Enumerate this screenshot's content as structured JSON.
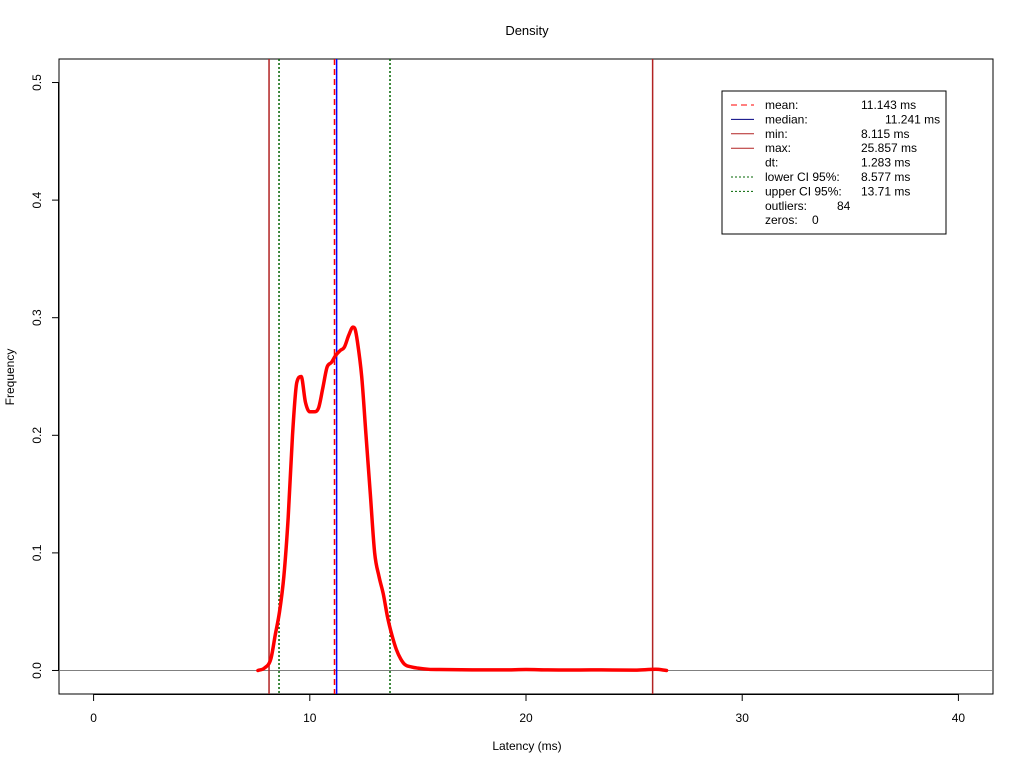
{
  "chart_data": {
    "type": "line",
    "title": "Density",
    "xlabel": "Latency (ms)",
    "ylabel": "Frequency",
    "xlim": [
      -1.6,
      41.6
    ],
    "ylim": [
      -0.02,
      0.52
    ],
    "x_ticks": [
      "0",
      "10",
      "20",
      "30",
      "40"
    ],
    "y_ticks": [
      "0.0",
      "0.1",
      "0.2",
      "0.3",
      "0.4",
      "0.5"
    ],
    "grid": false,
    "legend_position": "top-right",
    "density": {
      "color": "#ff0000",
      "x": [
        7.6,
        7.9,
        8.2,
        8.4,
        8.6,
        8.8,
        9.0,
        9.2,
        9.4,
        9.6,
        9.8,
        10.0,
        10.2,
        10.4,
        10.6,
        10.8,
        11.0,
        11.2,
        11.4,
        11.6,
        11.8,
        12.0,
        12.1,
        12.2,
        12.4,
        12.6,
        12.8,
        13.0,
        13.2,
        13.4,
        13.6,
        13.8,
        14.0,
        14.2,
        14.4,
        14.7,
        15.0,
        15.5,
        16.0,
        17.0,
        18.0,
        19.0,
        20.0,
        21.0,
        22.0,
        23.0,
        24.0,
        25.0,
        26.0,
        26.5
      ],
      "y": [
        0.0,
        0.002,
        0.01,
        0.03,
        0.05,
        0.08,
        0.13,
        0.2,
        0.245,
        0.25,
        0.228,
        0.22,
        0.22,
        0.223,
        0.24,
        0.258,
        0.262,
        0.268,
        0.272,
        0.275,
        0.285,
        0.292,
        0.29,
        0.28,
        0.25,
        0.2,
        0.15,
        0.1,
        0.08,
        0.065,
        0.045,
        0.03,
        0.018,
        0.01,
        0.005,
        0.003,
        0.002,
        0.001,
        0.0008,
        0.0006,
        0.0005,
        0.0005,
        0.0008,
        0.0005,
        0.0004,
        0.0005,
        0.0004,
        0.0003,
        0.001,
        0.0
      ]
    },
    "vlines": [
      {
        "name": "mean",
        "x": 11.143,
        "color": "#ff0000",
        "style": "dashed"
      },
      {
        "name": "median",
        "x": 11.241,
        "color": "#0000ff",
        "style": "solid"
      },
      {
        "name": "min",
        "x": 8.115,
        "color": "#b22222",
        "style": "solid"
      },
      {
        "name": "max",
        "x": 25.857,
        "color": "#b22222",
        "style": "solid"
      },
      {
        "name": "lower CI 95%",
        "x": 8.577,
        "color": "#006400",
        "style": "dotted"
      },
      {
        "name": "upper CI 95%",
        "x": 13.71,
        "color": "#006400",
        "style": "dotted"
      }
    ],
    "baseline": {
      "y": 0,
      "color": "#808080"
    },
    "legend": [
      {
        "label": "mean:",
        "value": "11.143 ms",
        "line": {
          "color": "#ff0000",
          "style": "dashed"
        }
      },
      {
        "label": "median:",
        "value": "11.241 ms",
        "line": {
          "color": "#000080",
          "style": "solid"
        }
      },
      {
        "label": "min:",
        "value": "8.115 ms",
        "line": {
          "color": "#b22222",
          "style": "solid"
        }
      },
      {
        "label": "max:",
        "value": "25.857 ms",
        "line": {
          "color": "#b22222",
          "style": "solid"
        }
      },
      {
        "label": "dt:",
        "value": "1.283 ms",
        "line": null
      },
      {
        "label": "lower CI 95%:",
        "value": "8.577 ms",
        "line": {
          "color": "#006400",
          "style": "dotted"
        }
      },
      {
        "label": "upper CI 95%:",
        "value": "13.71 ms",
        "line": {
          "color": "#006400",
          "style": "dotted"
        }
      },
      {
        "label": "outliers:",
        "value": "84",
        "line": null
      },
      {
        "label": "zeros:",
        "value": "0",
        "line": null
      }
    ]
  }
}
